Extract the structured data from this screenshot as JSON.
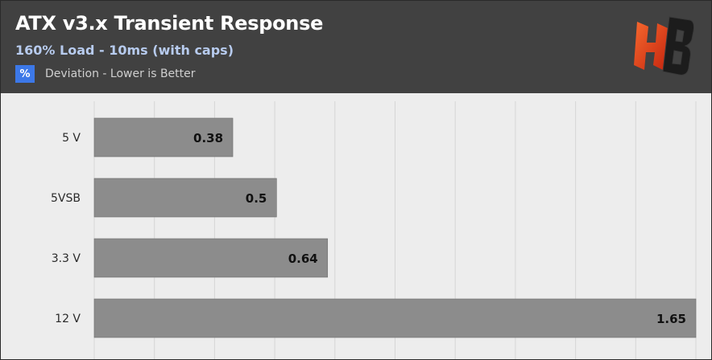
{
  "header": {
    "title": "ATX v3.x Transient Response",
    "subtitle": "160% Load - 10ms (with caps)",
    "legend_symbol": "%",
    "legend_label": "Deviation - Lower is Better"
  },
  "colors": {
    "header_bg": "#414141",
    "plot_bg": "#ededed",
    "bar": "#8c8c8c",
    "legend_swatch": "#3c78e8",
    "subtitle": "#b7cbee",
    "logo_orange": "#e8401c"
  },
  "logo": {
    "icon": "hb-logo-icon"
  },
  "chart_data": {
    "type": "bar",
    "orientation": "horizontal",
    "categories": [
      "5 V",
      "5VSB",
      "3.3 V",
      "12 V"
    ],
    "series": [
      {
        "values": [
          0.38,
          0.5,
          0.64,
          1.65
        ]
      }
    ],
    "xlim": [
      0,
      1.65
    ],
    "grid": true,
    "legend_position": "top-left"
  }
}
